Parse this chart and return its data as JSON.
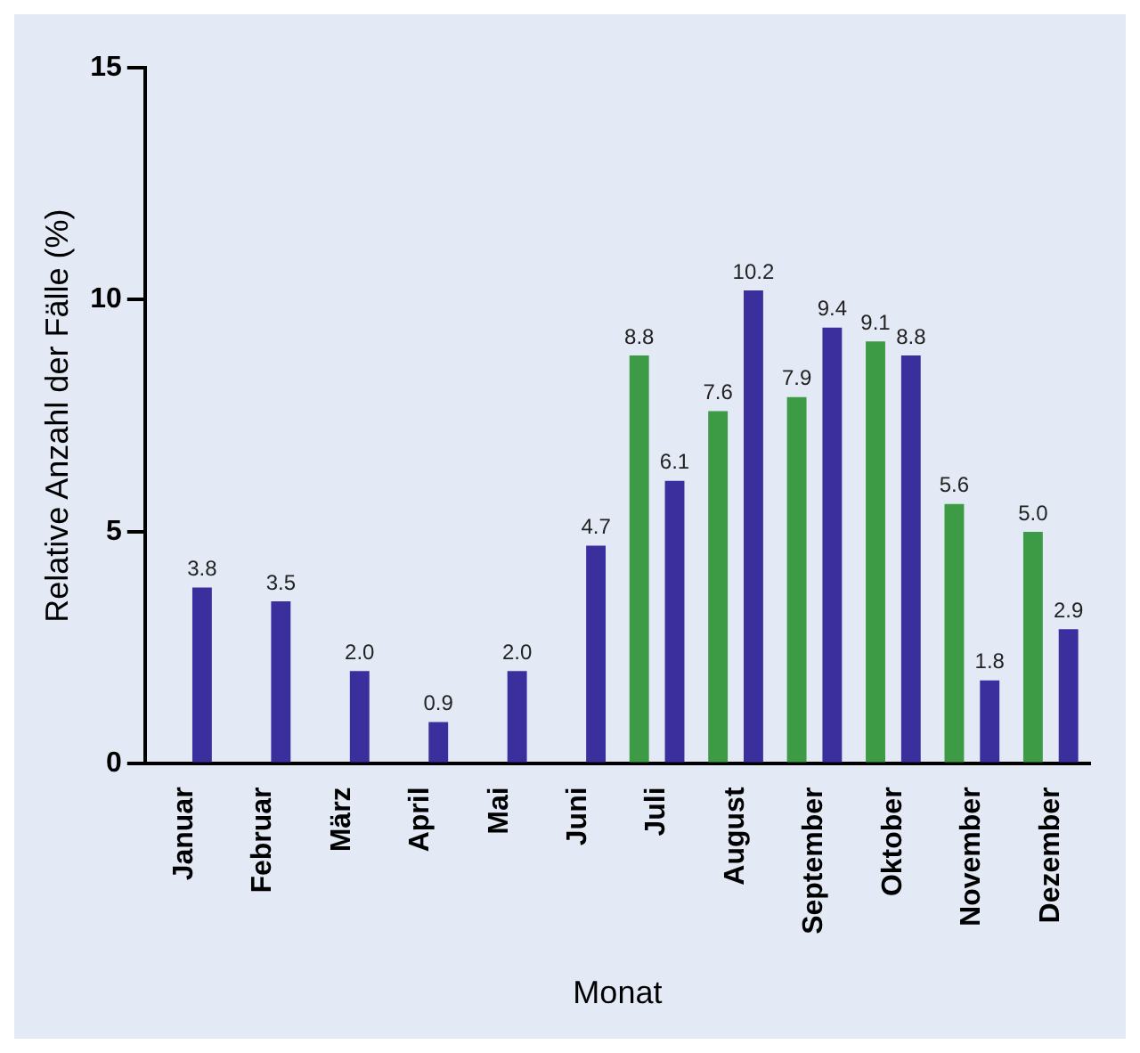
{
  "chart_data": {
    "type": "bar",
    "xlabel": "Monat",
    "ylabel": "Relative Anzahl der Fälle (%)",
    "categories": [
      "Januar",
      "Februar",
      "März",
      "April",
      "Mai",
      "Juni",
      "Juli",
      "August",
      "September",
      "Oktober",
      "November",
      "Dezember"
    ],
    "series": [
      {
        "color": "#3d9a45",
        "values": [
          null,
          null,
          null,
          null,
          null,
          null,
          8.8,
          7.6,
          7.9,
          9.1,
          5.6,
          5.0
        ],
        "value_labels": [
          null,
          null,
          null,
          null,
          null,
          null,
          "8.8",
          "7.6",
          "7.9",
          "9.1",
          "5.6",
          "5.0"
        ]
      },
      {
        "color": "#3b2f9e",
        "values": [
          3.8,
          3.5,
          2.0,
          0.9,
          2.0,
          4.7,
          6.1,
          10.2,
          9.4,
          8.8,
          1.8,
          2.9
        ],
        "value_labels": [
          "3.8",
          "3.5",
          "2.0",
          "0.9",
          "2.0",
          "4.7",
          "6.1",
          "10.2",
          "9.4",
          "8.8",
          "1.8",
          "2.9"
        ]
      }
    ],
    "ylim": [
      0,
      15
    ],
    "yticks": [
      0,
      5,
      10,
      15
    ],
    "grid": false,
    "legend": false
  }
}
